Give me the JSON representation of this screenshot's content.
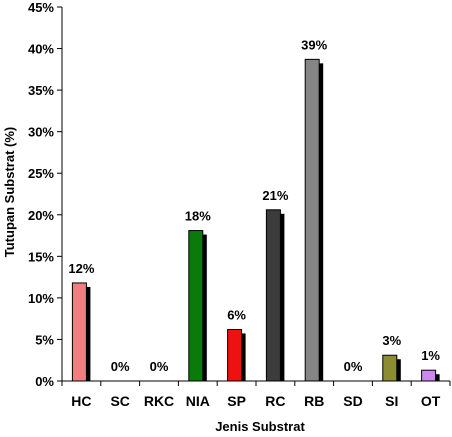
{
  "chart_data": {
    "type": "bar",
    "title": "",
    "xlabel": "Jenis Substrat",
    "ylabel": "Tutupan Substrat  (%)",
    "ylim": [
      0,
      45
    ],
    "y_ticks": [
      "0%",
      "5%",
      "10%",
      "15%",
      "20%",
      "25%",
      "30%",
      "35%",
      "40%",
      "45%"
    ],
    "grid": false,
    "legend": "none",
    "categories": [
      "HC",
      "SC",
      "RKC",
      "NIA",
      "SP",
      "RC",
      "RB",
      "SD",
      "SI",
      "OT"
    ],
    "values": [
      11.8,
      0,
      0,
      18.1,
      6.2,
      20.6,
      38.7,
      0,
      3.1,
      1.3
    ],
    "data_labels": [
      "12%",
      "0%",
      "0%",
      "18%",
      "6%",
      "21%",
      "39%",
      "0%",
      "3%",
      "1%"
    ],
    "colors": [
      "#f08080",
      "#ffffff",
      "#ffffff",
      "#0b7a0b",
      "#ee1111",
      "#3c3c3c",
      "#858585",
      "#ffffff",
      "#8c8c33",
      "#cc88ee"
    ],
    "shadow_color": "#000000",
    "axis_color": "#000000"
  }
}
